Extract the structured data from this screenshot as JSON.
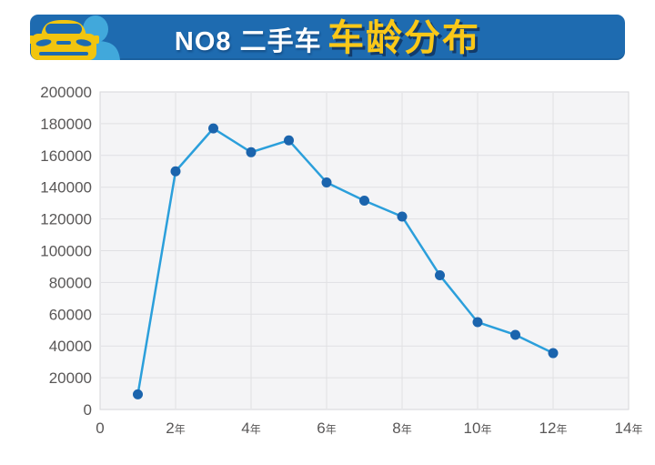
{
  "header": {
    "title_prefix": "NO8 二手车",
    "title_highlight": "车龄分布",
    "icons": [
      "car-icon",
      "person-icon"
    ],
    "colors": {
      "banner_bg": "#1e6bb0",
      "title_prefix": "#ffffff",
      "title_highlight": "#fac818",
      "car": "#f2c50f",
      "person": "#41a8db"
    }
  },
  "chart_data": {
    "type": "line",
    "title": "NO8 二手车车龄分布",
    "x": [
      1,
      2,
      3,
      4,
      5,
      6,
      7,
      8,
      9,
      10,
      11,
      12
    ],
    "values": [
      9500,
      150000,
      177000,
      162000,
      169500,
      143000,
      131500,
      121500,
      84500,
      55000,
      47000,
      35500
    ],
    "xtick_positions": [
      0,
      2,
      4,
      6,
      8,
      10,
      12,
      14
    ],
    "xtick_labels": [
      "0",
      "2年",
      "4年",
      "6年",
      "8年",
      "10年",
      "12年",
      "14年"
    ],
    "ytick_values": [
      0,
      20000,
      40000,
      60000,
      80000,
      100000,
      120000,
      140000,
      160000,
      180000,
      200000
    ],
    "xlim": [
      0,
      14
    ],
    "ylim": [
      0,
      200000
    ],
    "grid": true,
    "legend": "none",
    "line_color": "#2b9fdb",
    "marker_color": "#1b64ad",
    "plot_bg": "#f4f4f6",
    "grid_color": "#e0e0e3",
    "border_color": "#d6d6d9",
    "axis_text_color": "#595757"
  }
}
